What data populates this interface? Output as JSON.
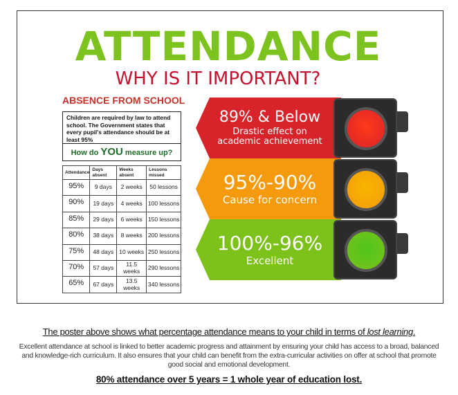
{
  "poster": {
    "title": "ATTENDANCE",
    "subtitle": "WHY IS IT IMPORTANT?",
    "section": "ABSENCE FROM SCHOOL",
    "info": "Children are required by law to attend school. The Government states that every pupil's attendance should be at least 95%",
    "measure_pre": "How do ",
    "measure_you": "YOU",
    "measure_post": " measure up?",
    "table": {
      "headers": [
        "Attendance",
        "Days absent",
        "Weeks absent",
        "Lessons missed"
      ],
      "rows": [
        [
          "95%",
          "9 days",
          "2 weeks",
          "50 lessons"
        ],
        [
          "90%",
          "19 days",
          "4 weeks",
          "100 lessons"
        ],
        [
          "85%",
          "29 days",
          "6 weeks",
          "150 lessons"
        ],
        [
          "80%",
          "38 days",
          "8 weeks",
          "200 lessons"
        ],
        [
          "75%",
          "48 days",
          "10 weeks",
          "250 lessons"
        ],
        [
          "70%",
          "57 days",
          "11.5 weeks",
          "290 lessons"
        ],
        [
          "65%",
          "67 days",
          "13.5 weeks",
          "340 lessons"
        ]
      ]
    },
    "bands": [
      {
        "range": "89% & Below",
        "desc": "Drastic effect on academic achievement",
        "color": "#d9232a",
        "light": "#ff3a1a"
      },
      {
        "range": "95%-90%",
        "desc": "Cause for concern",
        "color": "#f59a0c",
        "light": "#f7b600"
      },
      {
        "range": "100%-96%",
        "desc": "Excellent",
        "color": "#7cc21a",
        "light": "#4fc51c"
      }
    ]
  },
  "bottom": {
    "line1_pre": "The poster above shows what percentage attendance means to your child in terms of ",
    "line1_em": "lost learning",
    "line1_post": ".",
    "paragraph": "Excellent attendance at school is linked to better academic progress and attainment by ensuring your child has access to a broad, balanced and knowledge-rich curriculum. It also ensures that your child can benefit from the extra-curricular activities on offer at school that promote good social and emotional development.",
    "line3": "80% attendance over 5 years = 1 whole year of education lost."
  }
}
